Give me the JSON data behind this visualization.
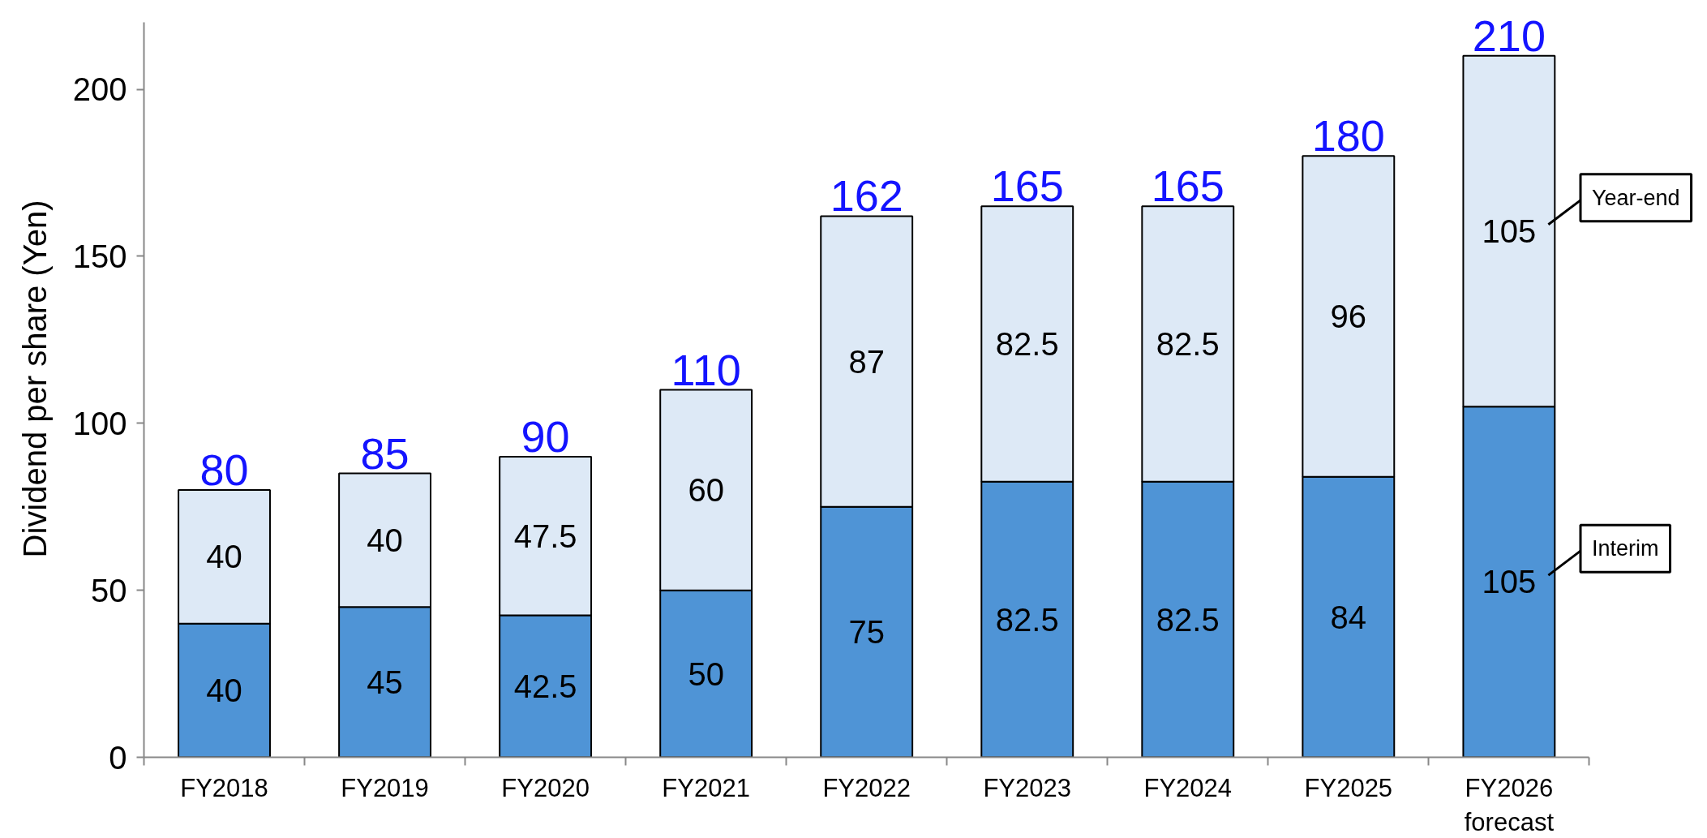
{
  "chart_data": {
    "type": "bar",
    "stacked": true,
    "ylabel": "Dividend per share (Yen)",
    "categories": [
      "FY2018",
      "FY2019",
      "FY2020",
      "FY2021",
      "FY2022",
      "FY2023",
      "FY2024",
      "FY2025",
      "FY2026\nforecast"
    ],
    "series": [
      {
        "name": "Interim",
        "color": "#4f94d6",
        "values": [
          40,
          45,
          42.5,
          50,
          75,
          82.5,
          82.5,
          84,
          105
        ]
      },
      {
        "name": "Year-end",
        "color": "#dde9f6",
        "values": [
          40,
          40,
          47.5,
          60,
          87,
          82.5,
          82.5,
          96,
          105
        ]
      }
    ],
    "totals": [
      "80",
      "85",
      "90",
      "110",
      "162",
      "165",
      "165",
      "180",
      "210"
    ],
    "data_labels": true,
    "legend": "right",
    "ylim": [
      0,
      220
    ],
    "yticks": [
      0,
      50,
      100,
      150,
      200
    ]
  }
}
